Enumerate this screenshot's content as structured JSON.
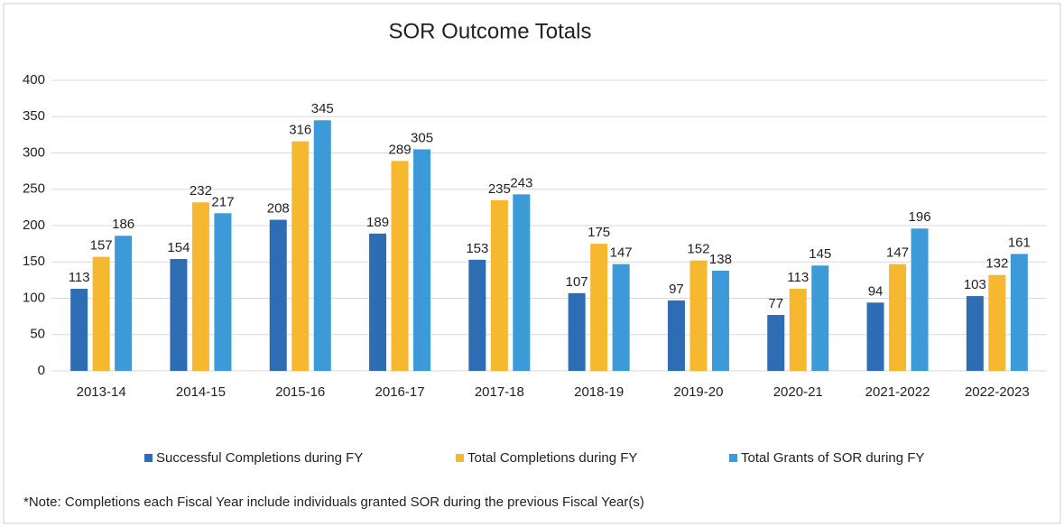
{
  "chart_data": {
    "type": "bar",
    "title": "SOR Outcome Totals",
    "categories": [
      "2013-14",
      "2014-15",
      "2015-16",
      "2016-17",
      "2017-18",
      "2018-19",
      "2019-20",
      "2020-21",
      "2021-2022",
      "2022-2023"
    ],
    "series": [
      {
        "name": "Successful Completions during FY",
        "color": "#2e6db4",
        "values": [
          113,
          154,
          208,
          189,
          153,
          107,
          97,
          77,
          94,
          103
        ]
      },
      {
        "name": "Total Completions during FY",
        "color": "#f5b82e",
        "values": [
          157,
          232,
          316,
          289,
          235,
          175,
          152,
          113,
          147,
          132
        ]
      },
      {
        "name": "Total Grants of SOR during FY",
        "color": "#3d9ad8",
        "values": [
          186,
          217,
          345,
          305,
          243,
          147,
          138,
          145,
          196,
          161
        ]
      }
    ],
    "ylim": [
      0,
      400
    ],
    "yticks": [
      0,
      50,
      100,
      150,
      200,
      250,
      300,
      350,
      400
    ],
    "grid": true,
    "legend": "bottom",
    "note": "*Note: Completions each Fiscal Year  include individuals granted SOR during the previous Fiscal Year(s)"
  }
}
